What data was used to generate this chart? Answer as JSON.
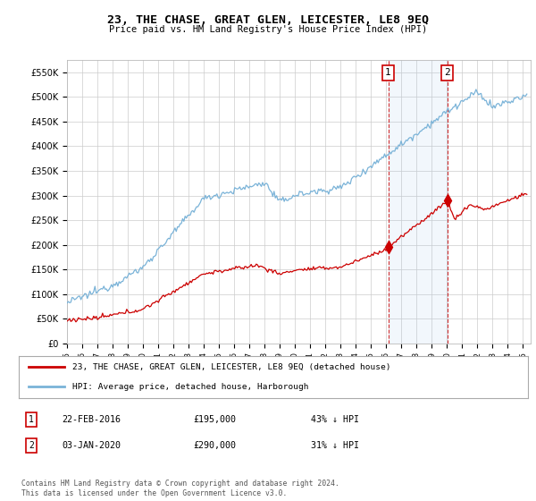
{
  "title": "23, THE CHASE, GREAT GLEN, LEICESTER, LE8 9EQ",
  "subtitle": "Price paid vs. HM Land Registry's House Price Index (HPI)",
  "ylabel_ticks": [
    "£0",
    "£50K",
    "£100K",
    "£150K",
    "£200K",
    "£250K",
    "£300K",
    "£350K",
    "£400K",
    "£450K",
    "£500K",
    "£550K"
  ],
  "ytick_values": [
    0,
    50000,
    100000,
    150000,
    200000,
    250000,
    300000,
    350000,
    400000,
    450000,
    500000,
    550000
  ],
  "ylim": [
    0,
    575000
  ],
  "xlim_start": 1995.0,
  "xlim_end": 2025.5,
  "hpi_color": "#7ab3d8",
  "hpi_fill_color": "#ddeeff",
  "price_color": "#cc0000",
  "marker1_x": 2016.13,
  "marker1_y": 195000,
  "marker2_x": 2020.01,
  "marker2_y": 290000,
  "legend_house_label": "23, THE CHASE, GREAT GLEN, LEICESTER, LE8 9EQ (detached house)",
  "legend_hpi_label": "HPI: Average price, detached house, Harborough",
  "table_row1": [
    "1",
    "22-FEB-2016",
    "£195,000",
    "43% ↓ HPI"
  ],
  "table_row2": [
    "2",
    "03-JAN-2020",
    "£290,000",
    "31% ↓ HPI"
  ],
  "footer": "Contains HM Land Registry data © Crown copyright and database right 2024.\nThis data is licensed under the Open Government Licence v3.0.",
  "background_color": "#ffffff",
  "grid_color": "#cccccc"
}
